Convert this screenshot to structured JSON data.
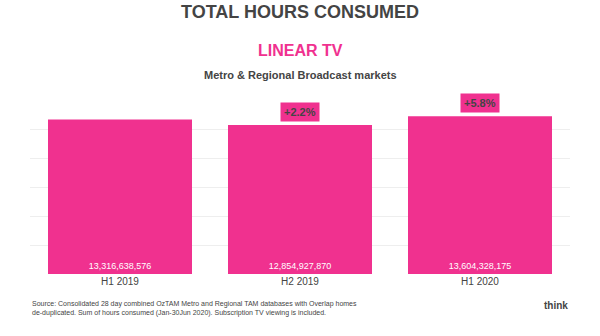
{
  "chart_data": {
    "type": "bar",
    "title": "TOTAL HOURS CONSUMED",
    "subtitle": [
      "LINEAR TV",
      "Metro & Regional Broadcast markets"
    ],
    "categories": [
      "H1 2019",
      "H2 2019",
      "H1 2020"
    ],
    "values": [
      13316638576,
      12854927870,
      13604328175
    ],
    "value_labels": [
      "13,316,638,576",
      "12,854,927,870",
      "13,604,328,175"
    ],
    "data_labels": true,
    "color": "#f0318f",
    "ylim": [
      0,
      15000000000
    ],
    "yticks": [
      0,
      2500000000,
      5000000000,
      7500000000,
      10000000000,
      12500000000,
      15000000000
    ],
    "grid": true,
    "tick_labels": "x",
    "annotations": [
      "+2.2%",
      "+5.8%"
    ],
    "source": "Source: Consolidated 28 day combined OzTAM Metro and Regional TAM databases with Overlap homes de-duplicated. Sum of hours consumed (Jan-30Jun 2020). Subscription TV viewing is included.",
    "logo": "think"
  }
}
